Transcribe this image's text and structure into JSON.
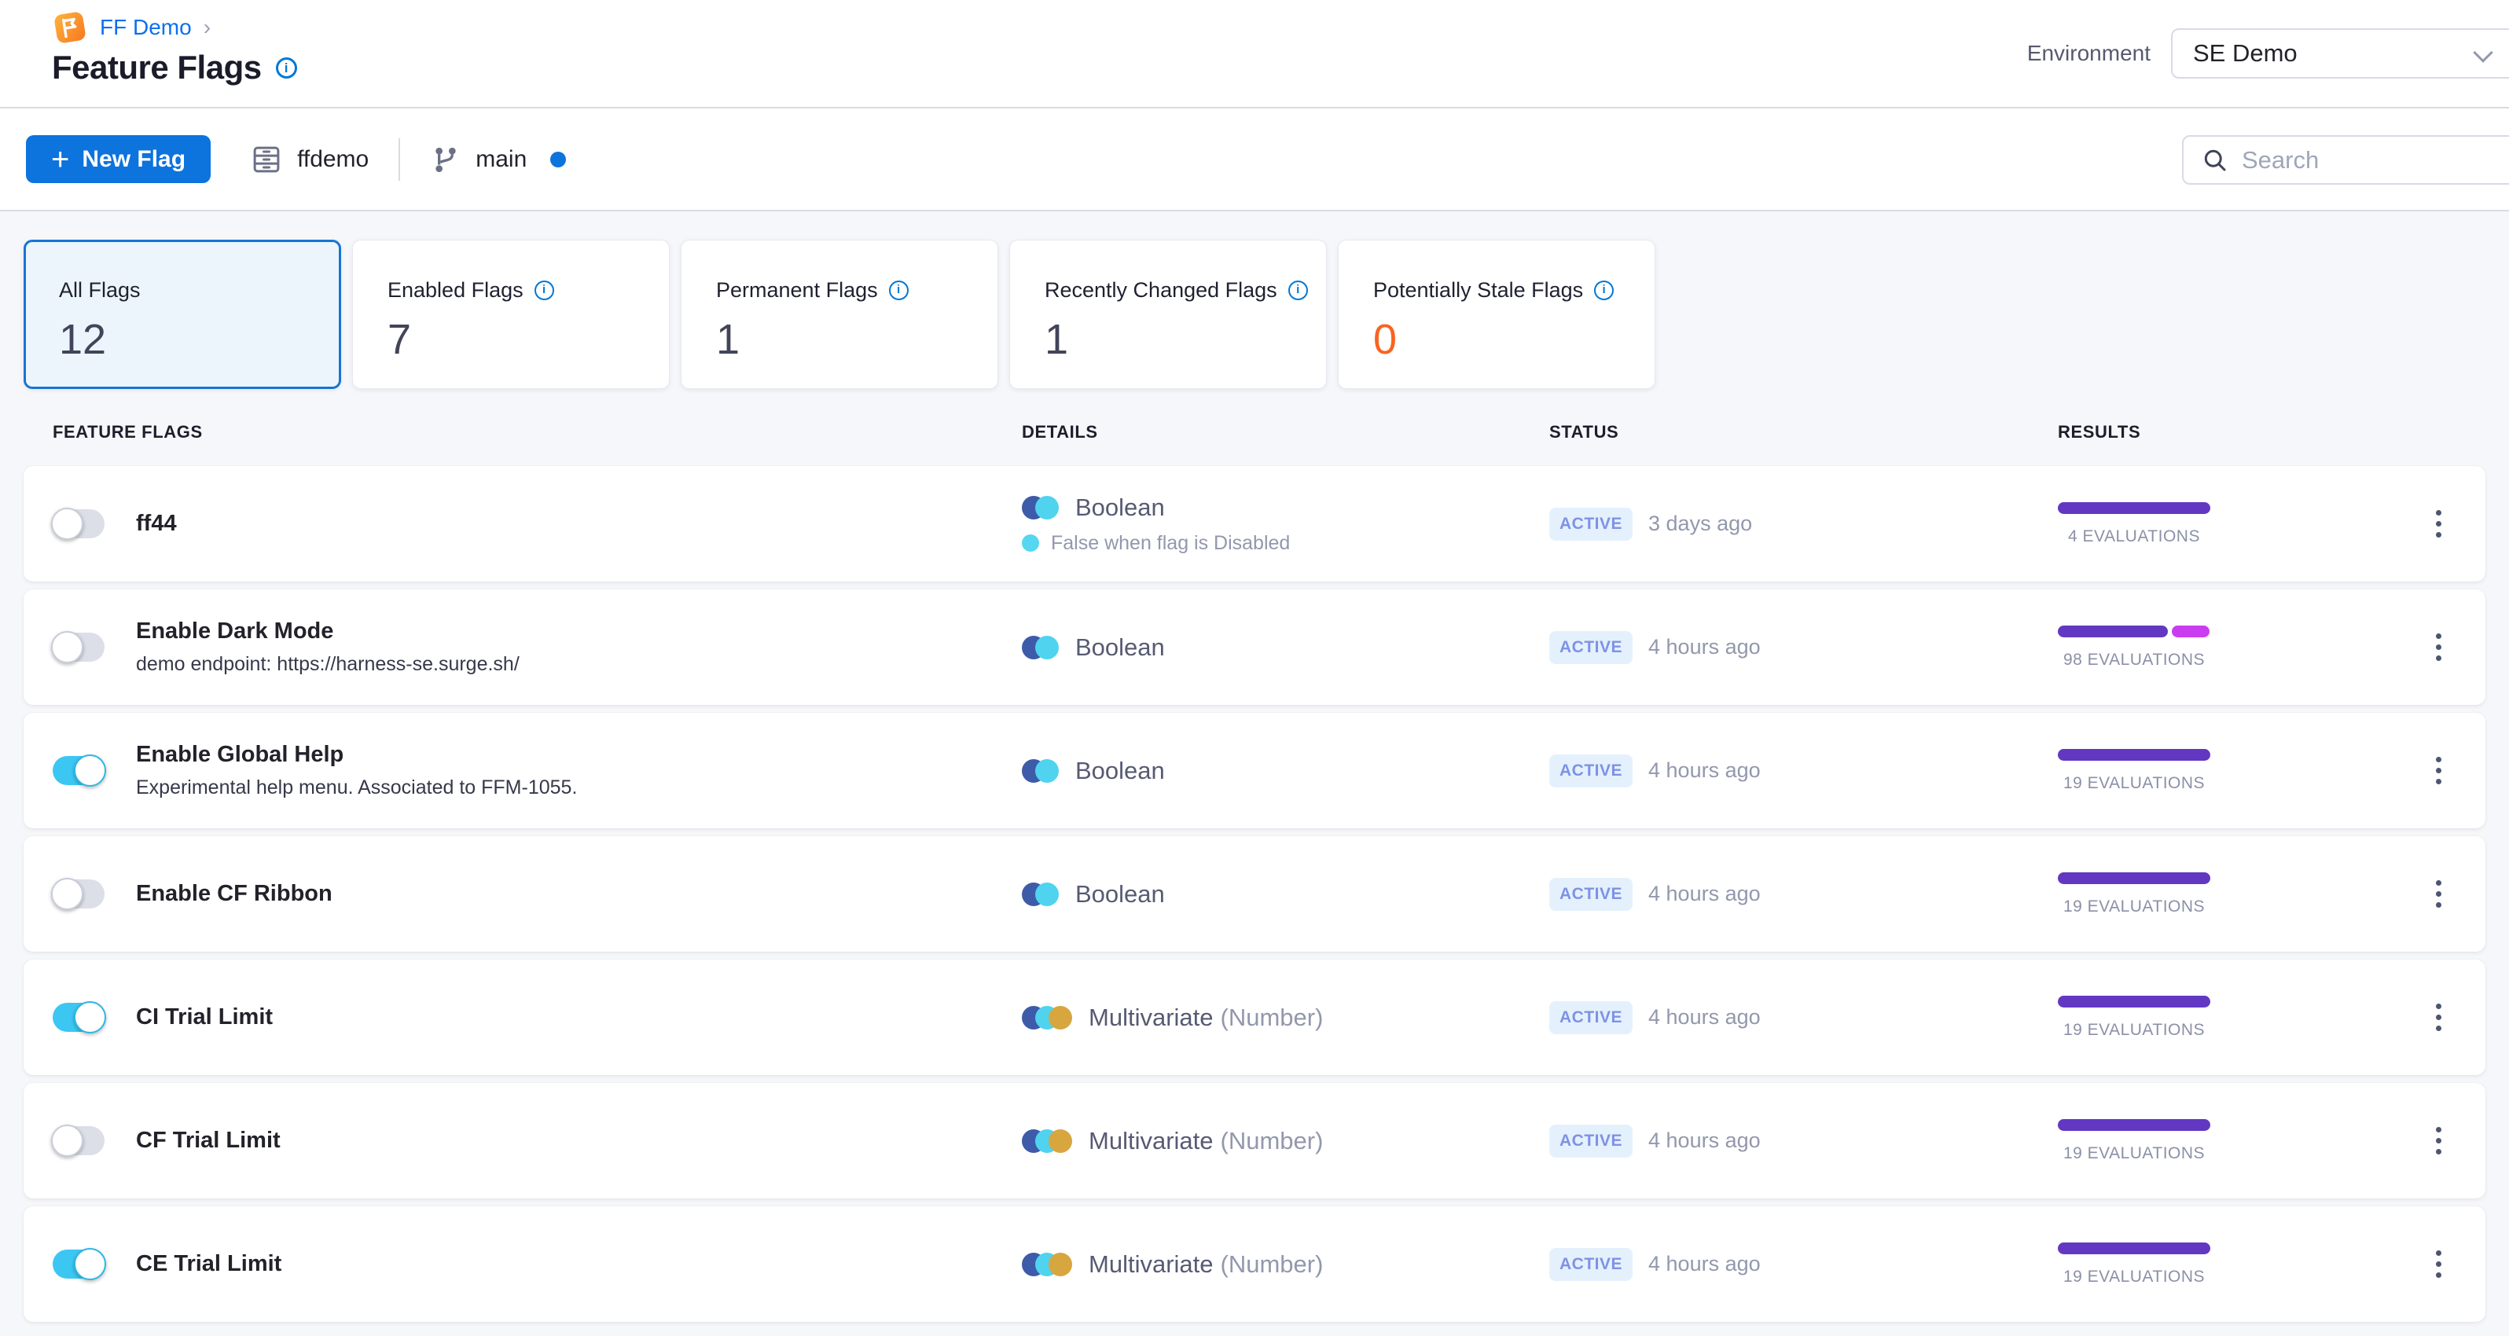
{
  "breadcrumb": {
    "project": "FF Demo",
    "chevron": "›"
  },
  "page": {
    "title": "Feature Flags"
  },
  "environment": {
    "label": "Environment",
    "selected": "SE Demo"
  },
  "toolbar": {
    "plus": "+",
    "new_flag_label": "New Flag",
    "repo_name": "ffdemo",
    "branch_name": "main",
    "search_placeholder": "Search"
  },
  "summary_cards": [
    {
      "label": "All Flags",
      "value": "12",
      "selected": true,
      "has_info": false
    },
    {
      "label": "Enabled Flags",
      "value": "7",
      "selected": false,
      "has_info": true
    },
    {
      "label": "Permanent Flags",
      "value": "1",
      "selected": false,
      "has_info": true
    },
    {
      "label": "Recently Changed Flags",
      "value": "1",
      "selected": false,
      "has_info": true
    },
    {
      "label": "Potentially Stale Flags",
      "value": "0",
      "selected": false,
      "has_info": true,
      "value_color": "#f96321"
    }
  ],
  "table": {
    "headers": [
      "FEATURE FLAGS",
      "DETAILS",
      "STATUS",
      "RESULTS"
    ]
  },
  "flags": [
    {
      "name": "ff44",
      "description": "",
      "enabled": false,
      "type": "Boolean",
      "subtype": "",
      "note": "False when flag is Disabled",
      "status": "ACTIVE",
      "last_change": "3 days ago",
      "evaluations": "4 EVALUATIONS",
      "bar": [
        {
          "color": "#6238c2",
          "pct": 100
        }
      ]
    },
    {
      "name": "Enable Dark Mode",
      "description": "demo endpoint: https://harness-se.surge.sh/",
      "enabled": false,
      "type": "Boolean",
      "subtype": "",
      "note": "",
      "status": "ACTIVE",
      "last_change": "4 hours ago",
      "evaluations": "98 EVALUATIONS",
      "bar": [
        {
          "color": "#6238c2",
          "pct": 72
        },
        {
          "color": "#ca3cf0",
          "pct": 25
        }
      ]
    },
    {
      "name": "Enable Global Help",
      "description": "Experimental help menu. Associated to FFM-1055.",
      "enabled": true,
      "type": "Boolean",
      "subtype": "",
      "note": "",
      "status": "ACTIVE",
      "last_change": "4 hours ago",
      "evaluations": "19 EVALUATIONS",
      "bar": [
        {
          "color": "#6238c2",
          "pct": 100
        }
      ]
    },
    {
      "name": "Enable CF Ribbon",
      "description": "",
      "enabled": false,
      "type": "Boolean",
      "subtype": "",
      "note": "",
      "status": "ACTIVE",
      "last_change": "4 hours ago",
      "evaluations": "19 EVALUATIONS",
      "bar": [
        {
          "color": "#6238c2",
          "pct": 100
        }
      ]
    },
    {
      "name": "CI Trial Limit",
      "description": "",
      "enabled": true,
      "type": "Multivariate",
      "subtype": "(Number)",
      "note": "",
      "status": "ACTIVE",
      "last_change": "4 hours ago",
      "evaluations": "19 EVALUATIONS",
      "bar": [
        {
          "color": "#6238c2",
          "pct": 100
        }
      ]
    },
    {
      "name": "CF Trial Limit",
      "description": "",
      "enabled": false,
      "type": "Multivariate",
      "subtype": "(Number)",
      "note": "",
      "status": "ACTIVE",
      "last_change": "4 hours ago",
      "evaluations": "19 EVALUATIONS",
      "bar": [
        {
          "color": "#6238c2",
          "pct": 100
        }
      ]
    },
    {
      "name": "CE Trial Limit",
      "description": "",
      "enabled": true,
      "type": "Multivariate",
      "subtype": "(Number)",
      "note": "",
      "status": "ACTIVE",
      "last_change": "4 hours ago",
      "evaluations": "19 EVALUATIONS",
      "bar": [
        {
          "color": "#6238c2",
          "pct": 100
        }
      ]
    }
  ],
  "colors": {
    "primary_blue": "#0d73dd",
    "toggle_on_cyan": "#3cc7f3",
    "results_purple": "#6238c2",
    "results_magenta": "#ca3cf0",
    "stale_orange": "#f96321",
    "active_badge_bg": "#e4f1fd",
    "active_badge_text": "#7e92e4"
  }
}
